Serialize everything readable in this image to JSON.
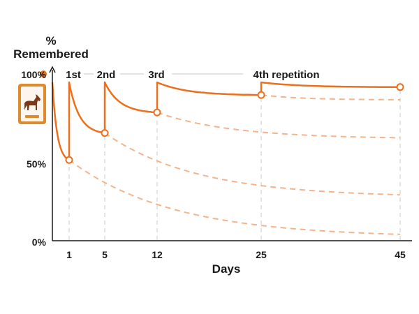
{
  "chart_data": {
    "type": "line",
    "ylabel_line1": "%",
    "ylabel_line2": "Remembered",
    "xlabel": "Days",
    "y_ticks": [
      "100%",
      "50%",
      "0%"
    ],
    "y_tick_values": [
      100,
      50,
      0
    ],
    "x_ticks": [
      "1",
      "5",
      "12",
      "25",
      "45"
    ],
    "x_tick_values": [
      1,
      5,
      12,
      25,
      45
    ],
    "ylim": [
      0,
      100
    ],
    "repetition_labels": [
      "1st",
      "2nd",
      "3rd",
      "4th repetition"
    ],
    "repetition_days": [
      1,
      5,
      12,
      25
    ],
    "colors": {
      "curve": "#ec6f1b",
      "dashed": "#f3b48c",
      "guides": "#c9c9c9",
      "axis": "#1a1a1a",
      "flashcard": "#e08a2e"
    },
    "icon": "horse-flashcard-icon",
    "series": [
      {
        "kind": "solid",
        "points": [
          {
            "x": 0,
            "y": 100
          },
          {
            "x": 1,
            "y": 51
          },
          {
            "x": 1,
            "y": 100
          },
          {
            "x": 5,
            "y": 68
          },
          {
            "x": 5,
            "y": 100
          },
          {
            "x": 12,
            "y": 81
          },
          {
            "x": 12,
            "y": 100
          },
          {
            "x": 25,
            "y": 92
          },
          {
            "x": 25,
            "y": 100
          },
          {
            "x": 45,
            "y": 97
          }
        ]
      },
      {
        "kind": "dashed",
        "start": {
          "x": 1,
          "y": 51
        },
        "end": {
          "x": 45,
          "y": 4
        }
      },
      {
        "kind": "dashed",
        "start": {
          "x": 5,
          "y": 68
        },
        "end": {
          "x": 45,
          "y": 29
        }
      },
      {
        "kind": "dashed",
        "start": {
          "x": 12,
          "y": 81
        },
        "end": {
          "x": 45,
          "y": 65
        }
      },
      {
        "kind": "dashed",
        "start": {
          "x": 25,
          "y": 92
        },
        "end": {
          "x": 45,
          "y": 89
        }
      }
    ],
    "markers": [
      {
        "x": 0,
        "y": 100,
        "filled": true
      },
      {
        "x": 1,
        "y": 51,
        "filled": false
      },
      {
        "x": 5,
        "y": 68,
        "filled": false
      },
      {
        "x": 12,
        "y": 81,
        "filled": false
      },
      {
        "x": 25,
        "y": 92,
        "filled": false
      },
      {
        "x": 45,
        "y": 97,
        "filled": false
      }
    ]
  }
}
